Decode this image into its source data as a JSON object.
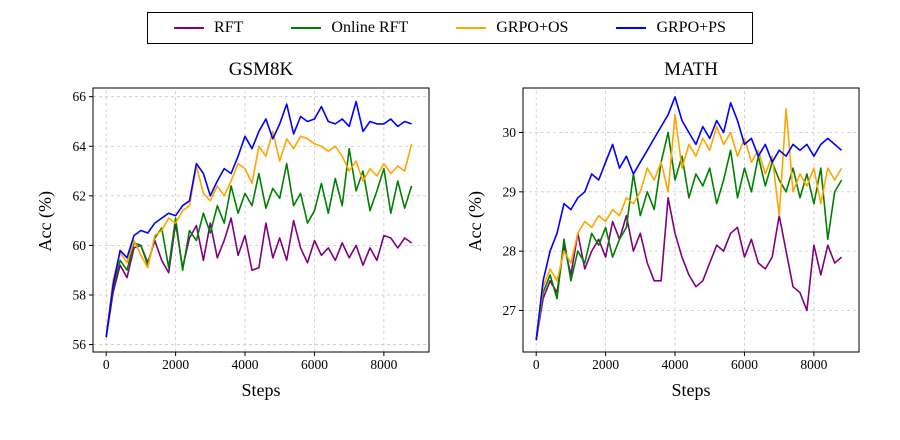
{
  "figure": {
    "legend": {
      "items": [
        {
          "name": "RFT",
          "color": "#800080"
        },
        {
          "name": "Online RFT",
          "color": "#008000"
        },
        {
          "name": "GRPO+OS",
          "color": "#FFA500"
        },
        {
          "name": "GRPO+PS",
          "color": "#0000FF"
        }
      ]
    }
  },
  "chart_data": [
    {
      "type": "line",
      "title": "GSM8K",
      "xlabel": "Steps",
      "ylabel": "Acc (%)",
      "xlim": [
        -380,
        9300
      ],
      "ylim": [
        55.7,
        66.35
      ],
      "xticks": [
        0,
        2000,
        4000,
        6000,
        8000
      ],
      "yticks": [
        56,
        58,
        60,
        62,
        64,
        66
      ],
      "grid": true,
      "legend_position": "top-outside",
      "x": [
        0,
        200,
        400,
        600,
        800,
        1000,
        1200,
        1400,
        1600,
        1800,
        2000,
        2200,
        2400,
        2600,
        2800,
        3000,
        3200,
        3400,
        3600,
        3800,
        4000,
        4200,
        4400,
        4600,
        4800,
        5000,
        5200,
        5400,
        5600,
        5800,
        6000,
        6200,
        6400,
        6600,
        6800,
        7000,
        7200,
        7400,
        7600,
        7800,
        8000,
        8200,
        8400,
        8600,
        8800
      ],
      "series": [
        {
          "name": "RFT",
          "color": "#800080",
          "values": [
            56.3,
            58.1,
            59.2,
            58.7,
            59.9,
            60.0,
            59.3,
            60.2,
            59.4,
            58.9,
            60.9,
            59.1,
            60.3,
            60.8,
            59.4,
            60.9,
            59.5,
            60.2,
            61.1,
            59.6,
            60.4,
            59.0,
            59.1,
            60.9,
            59.5,
            60.3,
            59.4,
            61.0,
            59.9,
            59.3,
            60.2,
            59.6,
            59.9,
            59.4,
            60.1,
            59.5,
            60.0,
            59.2,
            59.9,
            59.4,
            60.4,
            60.3,
            59.9,
            60.3,
            60.1
          ]
        },
        {
          "name": "Online RFT",
          "color": "#008000",
          "values": [
            56.3,
            58.3,
            59.4,
            59.0,
            60.1,
            60.0,
            59.2,
            60.3,
            60.7,
            59.1,
            61.1,
            59.0,
            60.6,
            60.2,
            61.3,
            60.5,
            61.6,
            60.9,
            62.4,
            61.3,
            62.1,
            61.6,
            62.9,
            61.5,
            62.3,
            61.9,
            63.3,
            61.6,
            62.1,
            60.9,
            61.4,
            62.5,
            61.3,
            62.7,
            61.6,
            63.9,
            62.2,
            63.0,
            61.4,
            62.2,
            63.1,
            61.3,
            62.6,
            61.5,
            62.4
          ]
        },
        {
          "name": "GRPO+OS",
          "color": "#FFA500",
          "values": [
            56.3,
            58.6,
            59.7,
            59.3,
            60.2,
            59.6,
            59.1,
            60.4,
            60.6,
            61.1,
            60.9,
            61.4,
            61.6,
            63.2,
            62.1,
            61.8,
            62.4,
            62.0,
            62.6,
            63.3,
            63.1,
            62.5,
            64.0,
            63.6,
            64.6,
            63.4,
            64.3,
            63.9,
            64.4,
            64.3,
            64.1,
            64.0,
            63.8,
            64.0,
            63.6,
            63.0,
            63.4,
            62.6,
            63.1,
            62.8,
            63.3,
            62.9,
            63.2,
            63.0,
            64.1
          ]
        },
        {
          "name": "GRPO+PS",
          "color": "#0000FF",
          "values": [
            56.3,
            58.4,
            59.8,
            59.5,
            60.4,
            60.6,
            60.5,
            60.9,
            61.1,
            61.3,
            61.2,
            61.6,
            61.8,
            63.3,
            62.9,
            62.0,
            62.6,
            63.1,
            62.9,
            63.6,
            64.4,
            63.9,
            64.6,
            65.1,
            64.3,
            64.9,
            65.7,
            64.5,
            65.2,
            65.0,
            65.1,
            65.6,
            65.0,
            64.9,
            65.1,
            64.8,
            65.8,
            64.6,
            65.0,
            64.9,
            64.9,
            65.1,
            64.8,
            65.0,
            64.9
          ]
        }
      ]
    },
    {
      "type": "line",
      "title": "MATH",
      "xlabel": "Steps",
      "ylabel": "Acc (%)",
      "xlim": [
        -380,
        9300
      ],
      "ylim": [
        26.3,
        30.75
      ],
      "xticks": [
        0,
        2000,
        4000,
        6000,
        8000
      ],
      "yticks": [
        27,
        28,
        29,
        30
      ],
      "grid": true,
      "legend_position": "top-outside",
      "x": [
        0,
        200,
        400,
        600,
        800,
        1000,
        1200,
        1400,
        1600,
        1800,
        2000,
        2200,
        2400,
        2600,
        2800,
        3000,
        3200,
        3400,
        3600,
        3800,
        4000,
        4200,
        4400,
        4600,
        4800,
        5000,
        5200,
        5400,
        5600,
        5800,
        6000,
        6200,
        6400,
        6600,
        6800,
        7000,
        7200,
        7400,
        7600,
        7800,
        8000,
        8200,
        8400,
        8600,
        8800
      ],
      "series": [
        {
          "name": "RFT",
          "color": "#800080",
          "values": [
            26.5,
            27.2,
            27.5,
            27.3,
            28.1,
            27.6,
            28.3,
            27.7,
            28.0,
            28.2,
            27.9,
            28.5,
            28.2,
            28.6,
            28.0,
            28.3,
            27.8,
            27.5,
            27.5,
            28.9,
            28.3,
            27.9,
            27.6,
            27.4,
            27.5,
            27.8,
            28.1,
            28.0,
            28.3,
            28.4,
            27.9,
            28.2,
            27.8,
            27.7,
            27.9,
            28.6,
            28.0,
            27.4,
            27.3,
            27.0,
            28.1,
            27.6,
            28.1,
            27.8,
            27.9
          ]
        },
        {
          "name": "Online RFT",
          "color": "#008000",
          "values": [
            26.5,
            27.3,
            27.6,
            27.2,
            28.2,
            27.5,
            28.0,
            27.8,
            28.3,
            28.1,
            28.4,
            27.9,
            28.2,
            28.4,
            29.3,
            28.6,
            29.0,
            28.7,
            29.5,
            30.0,
            29.2,
            29.6,
            28.9,
            29.3,
            29.1,
            29.4,
            28.8,
            29.2,
            29.7,
            28.9,
            29.4,
            29.0,
            29.6,
            29.1,
            29.5,
            29.2,
            29.0,
            29.4,
            28.9,
            29.3,
            28.8,
            29.4,
            28.2,
            29.0,
            29.2
          ]
        },
        {
          "name": "GRPO+OS",
          "color": "#FFA500",
          "values": [
            26.5,
            27.4,
            27.7,
            27.5,
            28.0,
            27.8,
            28.3,
            28.5,
            28.4,
            28.6,
            28.5,
            28.7,
            28.6,
            28.9,
            28.8,
            29.0,
            29.4,
            29.2,
            29.5,
            29.0,
            30.3,
            29.4,
            29.8,
            29.6,
            29.9,
            29.7,
            30.1,
            29.8,
            30.0,
            29.6,
            29.9,
            29.5,
            29.7,
            29.3,
            29.6,
            28.6,
            30.4,
            29.0,
            29.3,
            29.1,
            29.4,
            28.8,
            29.4,
            29.2,
            29.4
          ]
        },
        {
          "name": "GRPO+PS",
          "color": "#0000FF",
          "values": [
            26.5,
            27.5,
            28.0,
            28.3,
            28.8,
            28.7,
            28.9,
            29.0,
            29.3,
            29.2,
            29.5,
            29.8,
            29.4,
            29.6,
            29.3,
            29.5,
            29.7,
            29.9,
            30.1,
            30.3,
            30.6,
            30.2,
            30.0,
            29.8,
            30.1,
            29.9,
            30.2,
            30.0,
            30.5,
            30.2,
            29.8,
            29.9,
            29.6,
            29.8,
            29.5,
            29.7,
            29.6,
            29.8,
            29.7,
            29.8,
            29.6,
            29.8,
            29.9,
            29.8,
            29.7
          ]
        }
      ]
    }
  ]
}
